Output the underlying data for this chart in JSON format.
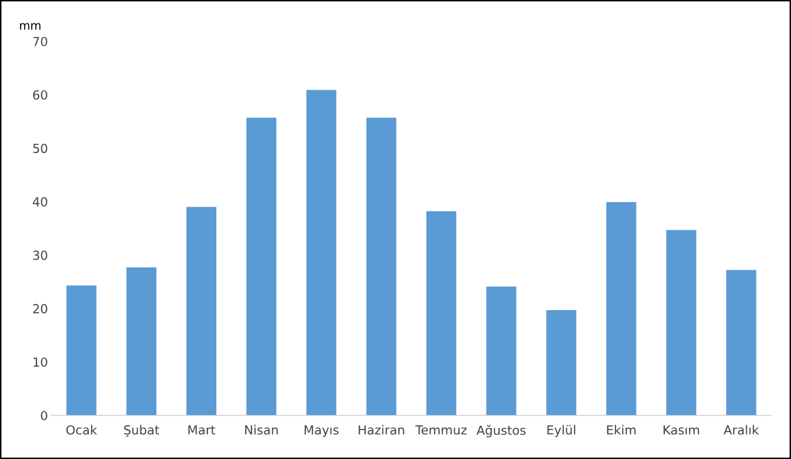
{
  "chart_data": {
    "type": "bar",
    "ylabel": "mm",
    "categories": [
      "Ocak",
      "Şubat",
      "Mart",
      "Nisan",
      "Mayıs",
      "Haziran",
      "Temmuz",
      "Ağustos",
      "Eylül",
      "Ekim",
      "Kasım",
      "Aralık"
    ],
    "values": [
      24.3,
      27.7,
      39.0,
      55.7,
      60.9,
      55.7,
      38.2,
      24.1,
      19.7,
      39.9,
      34.7,
      27.2
    ],
    "color": "#5b9bd5",
    "ylim": [
      0,
      70
    ],
    "yticks": [
      0,
      10,
      20,
      30,
      40,
      50,
      60,
      70
    ],
    "grid": false,
    "legend": false
  }
}
